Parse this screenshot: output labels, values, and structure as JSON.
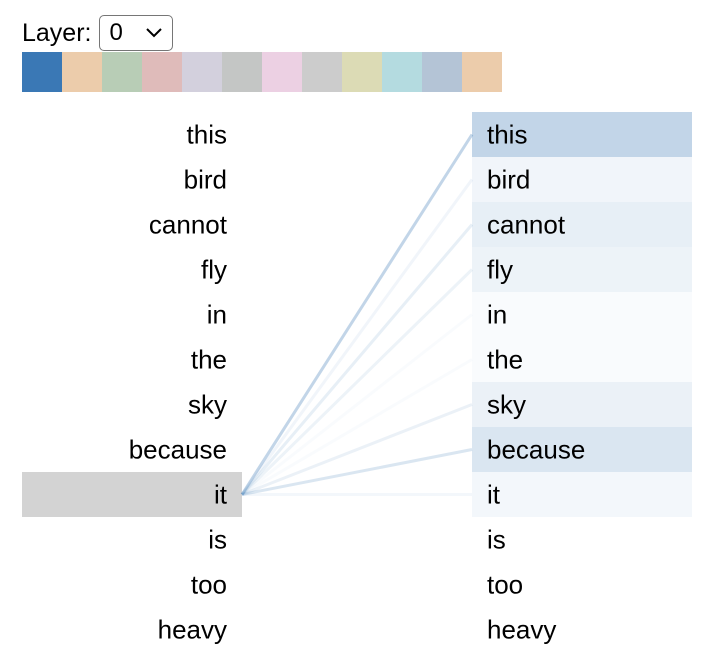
{
  "layer_control": {
    "label": "Layer:",
    "selected": "0"
  },
  "head_colors": [
    "#3a78b5",
    "#ecccab",
    "#b8cdb6",
    "#dfbbba",
    "#d3d0dd",
    "#c4c6c5",
    "#ecd0e3",
    "#cccccc",
    "#dcdbb5",
    "#b4dbe0",
    "#b4c4d6",
    "#ecccab"
  ],
  "attention": {
    "left_tokens": [
      "this",
      "bird",
      "cannot",
      "fly",
      "in",
      "the",
      "sky",
      "because",
      "it",
      "is",
      "too",
      "heavy"
    ],
    "right_tokens": [
      "this",
      "bird",
      "cannot",
      "fly",
      "in",
      "the",
      "sky",
      "because",
      "it",
      "is",
      "too",
      "heavy"
    ],
    "selected_index": 8,
    "highlight_color": "#d3d3d3",
    "attention_color": "#3a78b5",
    "weights": [
      0.31,
      0.07,
      0.12,
      0.09,
      0.03,
      0.03,
      0.1,
      0.19,
      0.06,
      0.0,
      0.0,
      0.0
    ]
  }
}
